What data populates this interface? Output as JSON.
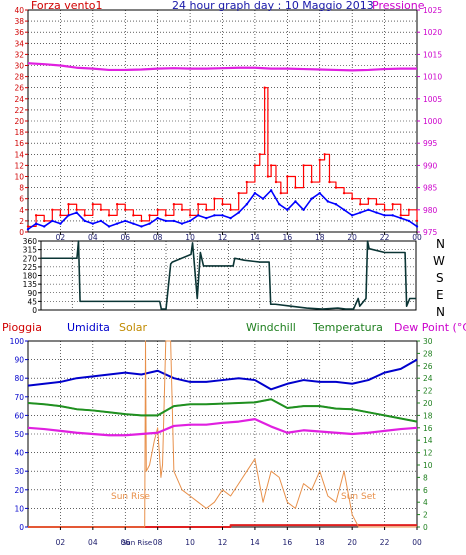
{
  "header": {
    "title": "24 hour graph day : 10 Maggio 2013",
    "left_label": "Forza vento1",
    "right_label": "Pressione"
  },
  "wind_direction_labels": [
    "N",
    "W",
    "S",
    "E",
    "N"
  ],
  "lower_legend": {
    "pioggia": "Pioggia",
    "umidita": "Umidita",
    "solar": "Solar",
    "windchill": "Windchill",
    "temperatura": "Temperatura",
    "dewpoint": "Dew Point (°C)"
  },
  "annotations": {
    "sunrise": "Sun Rise",
    "sunset": "Sun Set"
  },
  "colors": {
    "wind": "#ff0000",
    "wind_avg": "#0000ff",
    "pressure": "#e020e0",
    "direction": "#0b3535",
    "rain": "#e02020",
    "humidity": "#0000cc",
    "solar": "#e8904a",
    "windchill": "#209020",
    "temperature": "#209020",
    "dewpoint": "#e020e0",
    "left_axis_red": "#d00000",
    "right_axis_pink": "#cc00cc",
    "grid": "#000000"
  },
  "chart_data": [
    {
      "type": "line",
      "title": "24 hour graph day : 10 Maggio 2013",
      "x_tick_labels": [
        "02",
        "04",
        "06",
        "08",
        "10",
        "12",
        "14",
        "16",
        "18",
        "20",
        "22",
        "00"
      ],
      "xlim": [
        0,
        24
      ],
      "y_left_label": "Forza vento1",
      "y_left_ticks": [
        "0",
        "2",
        "4",
        "6",
        "8",
        "10",
        "12",
        "14",
        "16",
        "18",
        "20",
        "22",
        "24",
        "26",
        "28",
        "30",
        "32",
        "34",
        "36",
        "38",
        "40"
      ],
      "ylim_left": [
        0,
        40
      ],
      "y_right_label": "Pressione",
      "y_right_ticks": [
        "975",
        "980",
        "985",
        "990",
        "995",
        "1000",
        "1005",
        "1010",
        "1015",
        "1020",
        "1025"
      ],
      "ylim_right": [
        975,
        1025
      ],
      "series": [
        {
          "axis": "left",
          "x": [
            0,
            0.5,
            1,
            1.5,
            2,
            2.5,
            3,
            3.5,
            4,
            4.5,
            5,
            5.5,
            6,
            6.5,
            7,
            7.5,
            8,
            8.5,
            9,
            9.5,
            10,
            10.5,
            11,
            11.5,
            12,
            12.5,
            13,
            13.5,
            14,
            14.3,
            14.6,
            14.8,
            15,
            15.3,
            15.6,
            16,
            16.5,
            17,
            17.5,
            18,
            18.3,
            18.6,
            19,
            19.5,
            20,
            20.5,
            21,
            21.5,
            22,
            22.5,
            23,
            23.5,
            24
          ],
          "values": [
            1,
            3,
            2,
            4,
            3,
            5,
            4,
            3,
            5,
            4,
            3,
            5,
            4,
            3,
            2,
            3,
            4,
            3,
            5,
            4,
            3,
            5,
            4,
            6,
            5,
            4,
            7,
            9,
            12,
            14,
            26,
            10,
            12,
            9,
            7,
            10,
            8,
            12,
            9,
            13,
            14,
            9,
            8,
            7,
            6,
            5,
            6,
            5,
            4,
            5,
            3,
            4,
            2
          ]
        },
        {
          "axis": "left",
          "x": [
            0,
            0.5,
            1,
            1.5,
            2,
            2.5,
            3,
            3.5,
            4,
            4.5,
            5,
            5.5,
            6,
            6.5,
            7,
            7.5,
            8,
            8.5,
            9,
            9.5,
            10,
            10.5,
            11,
            11.5,
            12,
            12.5,
            13,
            13.5,
            14,
            14.5,
            15,
            15.5,
            16,
            16.5,
            17,
            17.5,
            18,
            18.5,
            19,
            19.5,
            20,
            20.5,
            21,
            21.5,
            22,
            22.5,
            23,
            23.5,
            24
          ],
          "values": [
            0.5,
            1.5,
            1,
            2,
            1.5,
            3,
            3.5,
            2,
            1.5,
            2,
            1,
            1.5,
            2,
            1.5,
            1,
            1.5,
            2.5,
            2,
            2,
            1.5,
            2,
            3,
            2.5,
            3,
            3,
            2.5,
            3.5,
            5,
            7,
            6,
            7.5,
            5,
            4,
            5.5,
            4,
            6,
            7,
            5.5,
            5,
            4,
            3,
            3.5,
            4,
            3.5,
            3,
            3,
            2.5,
            2,
            1
          ]
        },
        {
          "axis": "right",
          "x": [
            0,
            1,
            2,
            3,
            4,
            5,
            6,
            7,
            8,
            9,
            10,
            11,
            12,
            13,
            14,
            15,
            16,
            17,
            18,
            19,
            20,
            21,
            22,
            23,
            24
          ],
          "values": [
            1013,
            1012.8,
            1012.5,
            1012,
            1011.8,
            1011.5,
            1011.5,
            1011.6,
            1011.8,
            1011.9,
            1011.8,
            1011.8,
            1011.9,
            1012,
            1012,
            1011.8,
            1011.8,
            1011.7,
            1011.6,
            1011.5,
            1011.4,
            1011.5,
            1011.7,
            1011.8,
            1011.8
          ]
        }
      ]
    },
    {
      "type": "line",
      "x_tick_labels": [],
      "xlim": [
        0,
        24
      ],
      "y_left_ticks": [
        "0",
        "45",
        "90",
        "135",
        "180",
        "225",
        "270",
        "315",
        "360"
      ],
      "ylim_left": [
        0,
        360
      ],
      "y_right_ticks": [
        "N",
        "W",
        "S",
        "E",
        "N"
      ],
      "series": [
        {
          "x": [
            0,
            2.3,
            2.4,
            2.5,
            7.6,
            7.7,
            8,
            8.3,
            8.4,
            9.6,
            9.7,
            10,
            10.2,
            10.4,
            12.3,
            12.4,
            13,
            14,
            14.6,
            14.7,
            15,
            16,
            17,
            18,
            19,
            19.5,
            20,
            20.3,
            20.4,
            20.8,
            20.9,
            21,
            22,
            23.3,
            23.4,
            23.6,
            24
          ],
          "values": [
            270,
            270,
            360,
            45,
            45,
            5,
            5,
            240,
            250,
            290,
            350,
            60,
            300,
            230,
            230,
            270,
            260,
            250,
            250,
            30,
            30,
            20,
            10,
            5,
            10,
            5,
            5,
            60,
            20,
            60,
            360,
            320,
            300,
            300,
            20,
            60,
            60
          ]
        }
      ]
    },
    {
      "type": "line",
      "x_tick_labels": [
        "02",
        "04",
        "06",
        "08",
        "Sun Rise",
        "",
        "08",
        "10",
        "12",
        "14",
        "16",
        "18",
        "20",
        "22",
        "00"
      ],
      "xlim": [
        0,
        24
      ],
      "y_left_ticks": [
        "0",
        "10",
        "20",
        "30",
        "40",
        "50",
        "60",
        "70",
        "80",
        "90",
        "100"
      ],
      "ylim_left": [
        0,
        100
      ],
      "y_right_ticks": [
        "0",
        "2",
        "4",
        "6",
        "8",
        "10",
        "12",
        "14",
        "16",
        "18",
        "20",
        "22",
        "24",
        "26",
        "28",
        "30"
      ],
      "ylim_right": [
        0,
        30
      ],
      "series": [
        {
          "name": "Umidita",
          "axis": "left",
          "x": [
            0,
            1,
            2,
            3,
            4,
            5,
            6,
            7,
            8,
            9,
            10,
            11,
            12,
            13,
            14,
            15,
            16,
            17,
            18,
            19,
            20,
            21,
            22,
            23,
            24
          ],
          "values": [
            76,
            77,
            78,
            80,
            81,
            82,
            83,
            82,
            84,
            80,
            78,
            78,
            79,
            80,
            79,
            74,
            77,
            79,
            78,
            78,
            77,
            79,
            83,
            85,
            90
          ]
        },
        {
          "name": "Pioggia",
          "axis": "right",
          "x": [
            0,
            12,
            12.5,
            24
          ],
          "values": [
            0,
            0,
            0.3,
            0.3
          ]
        },
        {
          "name": "Solar",
          "axis": "right",
          "x": [
            0,
            7.2,
            7.25,
            7.3,
            7.5,
            7.8,
            8,
            8.2,
            8.3,
            8.5,
            8.8,
            9,
            9.5,
            10,
            10.5,
            11,
            11.5,
            12,
            12.5,
            13,
            13.5,
            14,
            14.5,
            15,
            15.5,
            16,
            16.5,
            17,
            17.5,
            18,
            18.5,
            19,
            19.5,
            20,
            20.2,
            20.4,
            24
          ],
          "values": [
            0,
            0,
            30,
            9,
            10,
            14,
            16,
            8,
            10,
            30,
            30,
            9,
            6,
            5,
            4,
            3,
            4,
            6,
            5,
            7,
            9,
            11,
            4,
            9,
            8,
            4,
            3,
            7,
            6,
            9,
            5,
            4,
            9,
            2,
            1,
            0,
            0
          ]
        },
        {
          "name": "Windchill",
          "axis": "right",
          "x": [
            0,
            1,
            2,
            3,
            4,
            5,
            6,
            7,
            8,
            9,
            10,
            11,
            12,
            13,
            14,
            15,
            16,
            17,
            18,
            19,
            20,
            21,
            22,
            23,
            24
          ],
          "values": [
            20,
            19.8,
            19.5,
            19,
            18.8,
            18.5,
            18.2,
            18,
            18,
            19.5,
            19.8,
            19.8,
            19.9,
            20,
            20.1,
            20.6,
            19.2,
            19.5,
            19.5,
            19.1,
            19,
            18.5,
            18,
            17.5,
            17
          ]
        },
        {
          "name": "Temperatura",
          "axis": "right",
          "x": [
            0,
            1,
            2,
            3,
            4,
            5,
            6,
            7,
            8,
            9,
            10,
            11,
            12,
            13,
            14,
            15,
            16,
            17,
            18,
            19,
            20,
            21,
            22,
            23,
            24
          ],
          "values": [
            20,
            19.8,
            19.5,
            19,
            18.8,
            18.5,
            18.2,
            18,
            18,
            19.5,
            19.8,
            19.8,
            19.9,
            20,
            20.1,
            20.6,
            19.2,
            19.5,
            19.5,
            19.1,
            19,
            18.5,
            18,
            17.5,
            17
          ]
        },
        {
          "name": "Dew Point (°C)",
          "axis": "right",
          "x": [
            0,
            1,
            2,
            3,
            4,
            5,
            6,
            7,
            8,
            9,
            10,
            11,
            12,
            13,
            14,
            15,
            16,
            17,
            18,
            19,
            20,
            21,
            22,
            23,
            24
          ],
          "values": [
            16,
            15.8,
            15.5,
            15.2,
            15,
            14.8,
            14.8,
            15,
            15.2,
            16.3,
            16.5,
            16.5,
            16.8,
            17,
            17.4,
            16.2,
            15.2,
            15.6,
            15.4,
            15.2,
            15,
            15.2,
            15.5,
            15.8,
            16
          ]
        }
      ]
    }
  ]
}
